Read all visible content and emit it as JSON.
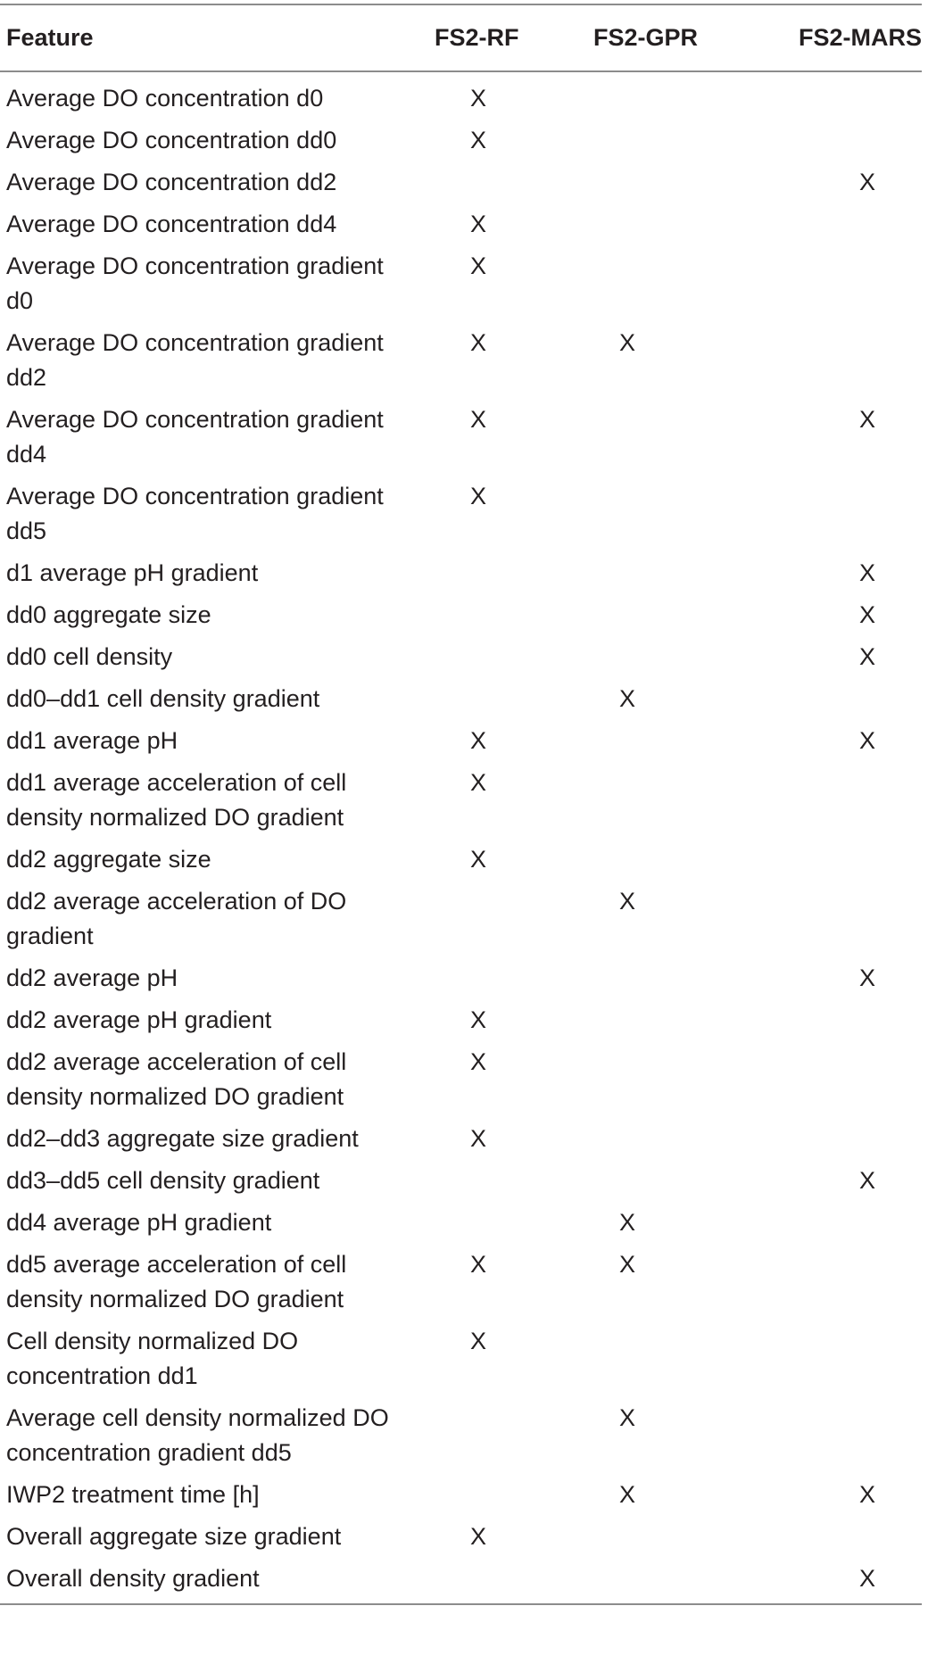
{
  "table": {
    "headers": {
      "feature": "Feature",
      "rf": "FS2-RF",
      "gpr": "FS2-GPR",
      "mars": "FS2-MARS"
    },
    "mark_symbol": "X",
    "rows": [
      {
        "feature": "Average DO concentration d0",
        "rf": "X",
        "gpr": "",
        "mars": ""
      },
      {
        "feature": "Average DO concentration dd0",
        "rf": "X",
        "gpr": "",
        "mars": ""
      },
      {
        "feature": "Average DO concentration dd2",
        "rf": "",
        "gpr": "",
        "mars": "X"
      },
      {
        "feature": "Average DO concentration dd4",
        "rf": "X",
        "gpr": "",
        "mars": ""
      },
      {
        "feature": "Average DO concentration gradient d0",
        "rf": "X",
        "gpr": "",
        "mars": ""
      },
      {
        "feature": "Average DO concentration gradient dd2",
        "rf": "X",
        "gpr": "X",
        "mars": ""
      },
      {
        "feature": "Average DO concentration gradient dd4",
        "rf": "X",
        "gpr": "",
        "mars": "X"
      },
      {
        "feature": "Average DO concentration gradient dd5",
        "rf": "X",
        "gpr": "",
        "mars": ""
      },
      {
        "feature": "d1 average pH gradient",
        "rf": "",
        "gpr": "",
        "mars": "X"
      },
      {
        "feature": "dd0 aggregate size",
        "rf": "",
        "gpr": "",
        "mars": "X"
      },
      {
        "feature": "dd0 cell density",
        "rf": "",
        "gpr": "",
        "mars": "X"
      },
      {
        "feature": "dd0–dd1 cell density gradient",
        "rf": "",
        "gpr": "X",
        "mars": ""
      },
      {
        "feature": "dd1 average pH",
        "rf": "X",
        "gpr": "",
        "mars": "X"
      },
      {
        "feature": "dd1 average acceleration of cell density normalized DO gradient",
        "rf": "X",
        "gpr": "",
        "mars": ""
      },
      {
        "feature": "dd2 aggregate size",
        "rf": "X",
        "gpr": "",
        "mars": ""
      },
      {
        "feature": "dd2 average acceleration of DO gradient",
        "rf": "",
        "gpr": "X",
        "mars": ""
      },
      {
        "feature": "dd2 average pH",
        "rf": "",
        "gpr": "",
        "mars": "X"
      },
      {
        "feature": "dd2 average pH gradient",
        "rf": "X",
        "gpr": "",
        "mars": ""
      },
      {
        "feature": "dd2 average acceleration of cell density normalized DO gradient",
        "rf": "X",
        "gpr": "",
        "mars": ""
      },
      {
        "feature": "dd2–dd3 aggregate size gradient",
        "rf": "X",
        "gpr": "",
        "mars": ""
      },
      {
        "feature": "dd3–dd5 cell density gradient",
        "rf": "",
        "gpr": "",
        "mars": "X"
      },
      {
        "feature": "dd4 average pH gradient",
        "rf": "",
        "gpr": "X",
        "mars": ""
      },
      {
        "feature": "dd5 average acceleration of cell density normalized DO gradient",
        "rf": "X",
        "gpr": "X",
        "mars": ""
      },
      {
        "feature": "Cell density normalized DO concentration dd1",
        "rf": "X",
        "gpr": "",
        "mars": ""
      },
      {
        "feature": "Average cell density normalized DO concentration gradient dd5",
        "rf": "",
        "gpr": "X",
        "mars": ""
      },
      {
        "feature": "IWP2 treatment time [h]",
        "rf": "",
        "gpr": "X",
        "mars": "X"
      },
      {
        "feature": "Overall aggregate size gradient",
        "rf": "X",
        "gpr": "",
        "mars": ""
      },
      {
        "feature": "Overall density gradient",
        "rf": "",
        "gpr": "",
        "mars": "X"
      }
    ]
  }
}
